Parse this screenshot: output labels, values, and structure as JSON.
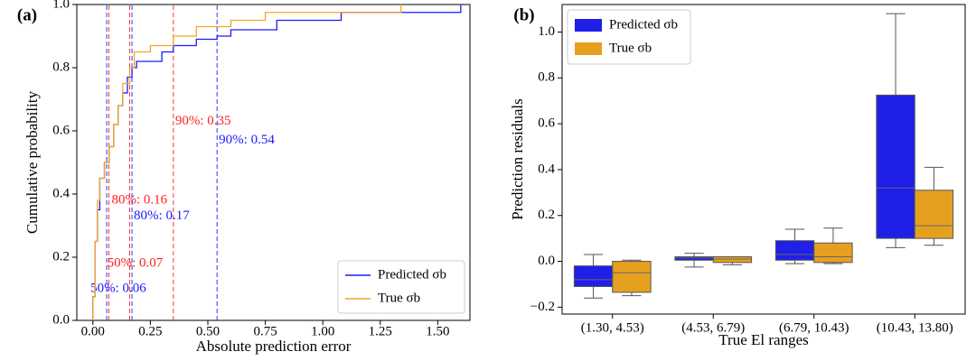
{
  "chart_data": [
    {
      "type": "step",
      "panel_label": "(a)",
      "xlabel": "Absolute prediction error",
      "ylabel": "Cumulative probability",
      "xlim": [
        -0.07,
        1.64
      ],
      "ylim": [
        0,
        1.0
      ],
      "xticks": [
        {
          "value": 0,
          "label": "0.00"
        },
        {
          "value": 0.25,
          "label": "0.25"
        },
        {
          "value": 0.5,
          "label": "0.50"
        },
        {
          "value": 0.75,
          "label": "0.75"
        },
        {
          "value": 1.0,
          "label": "1.00"
        },
        {
          "value": 1.25,
          "label": "1.25"
        },
        {
          "value": 1.5,
          "label": "1.50"
        }
      ],
      "yticks": [
        {
          "value": 0,
          "label": "0.0"
        },
        {
          "value": 0.2,
          "label": "0.2"
        },
        {
          "value": 0.4,
          "label": "0.4"
        },
        {
          "value": 0.6,
          "label": "0.6"
        },
        {
          "value": 0.8,
          "label": "0.8"
        },
        {
          "value": 1.0,
          "label": "1.0"
        }
      ],
      "legend": "lower right",
      "series": [
        {
          "name": "Predicted σb",
          "color": "#1a1aff",
          "x": [
            0.0,
            0.01,
            0.02,
            0.03,
            0.05,
            0.07,
            0.09,
            0.11,
            0.13,
            0.15,
            0.17,
            0.19,
            0.25,
            0.3,
            0.35,
            0.45,
            0.54,
            0.6,
            0.8,
            1.0,
            1.08,
            1.6
          ],
          "values": [
            0.075,
            0.25,
            0.35,
            0.45,
            0.5,
            0.55,
            0.62,
            0.68,
            0.72,
            0.77,
            0.8,
            0.82,
            0.82,
            0.85,
            0.87,
            0.89,
            0.9,
            0.92,
            0.95,
            0.95,
            0.975,
            1.0
          ]
        },
        {
          "name": "True σb",
          "color": "#f5a623",
          "x": [
            0.0,
            0.01,
            0.02,
            0.03,
            0.05,
            0.07,
            0.09,
            0.11,
            0.13,
            0.16,
            0.18,
            0.25,
            0.35,
            0.45,
            0.6,
            0.75,
            1.34
          ],
          "values": [
            0.075,
            0.25,
            0.38,
            0.45,
            0.5,
            0.55,
            0.62,
            0.68,
            0.75,
            0.8,
            0.85,
            0.87,
            0.9,
            0.93,
            0.95,
            0.975,
            1.0
          ]
        }
      ],
      "annotations": [
        {
          "x": 0.35,
          "label": "90%: 0.35",
          "color": "#ff2020"
        },
        {
          "x": 0.54,
          "label": "90%: 0.54",
          "color": "#1a1aff"
        },
        {
          "x": 0.16,
          "label": "80%: 0.16",
          "color": "#ff2020"
        },
        {
          "x": 0.17,
          "label": "80%: 0.17",
          "color": "#1a1aff"
        },
        {
          "x": 0.07,
          "label": "50%: 0.07",
          "color": "#ff2020"
        },
        {
          "x": 0.06,
          "label": "50%: 0.06",
          "color": "#1a1aff"
        }
      ]
    },
    {
      "type": "box",
      "panel_label": "(b)",
      "xlabel": "True El ranges",
      "ylabel": "Prediction residuals",
      "categories": [
        "(1.30, 4.53)",
        "(4.53, 6.79)",
        "(6.79, 10.43)",
        "(10.43, 13.80)"
      ],
      "ylim": [
        -0.23,
        1.12
      ],
      "yticks": [
        {
          "value": -0.2,
          "label": "−0.2"
        },
        {
          "value": 0,
          "label": "0.0"
        },
        {
          "value": 0.2,
          "label": "0.2"
        },
        {
          "value": 0.4,
          "label": "0.4"
        },
        {
          "value": 0.6,
          "label": "0.6"
        },
        {
          "value": 0.8,
          "label": "0.8"
        },
        {
          "value": 1.0,
          "label": "1.0"
        }
      ],
      "legend": "upper left",
      "series": [
        {
          "name": "Predicted σb",
          "color": "#1f1fe8",
          "values": [
            {
              "whislo": -0.16,
              "q1": -0.11,
              "med": -0.08,
              "q3": -0.02,
              "whishi": 0.03
            },
            {
              "whislo": -0.025,
              "q1": 0.005,
              "med": 0.015,
              "q3": 0.02,
              "whishi": 0.035
            },
            {
              "whislo": -0.01,
              "q1": 0.005,
              "med": 0.03,
              "q3": 0.09,
              "whishi": 0.14
            },
            {
              "whislo": 0.06,
              "q1": 0.1,
              "med": 0.32,
              "q3": 0.725,
              "whishi": 1.08
            }
          ]
        },
        {
          "name": "True σb",
          "color": "#e6a020",
          "values": [
            {
              "whislo": -0.15,
              "q1": -0.135,
              "med": -0.05,
              "q3": 0.0,
              "whishi": 0.005
            },
            {
              "whislo": -0.015,
              "q1": -0.005,
              "med": 0.01,
              "q3": 0.02,
              "whishi": 0.02
            },
            {
              "whislo": -0.01,
              "q1": -0.005,
              "med": 0.02,
              "q3": 0.08,
              "whishi": 0.145
            },
            {
              "whislo": 0.07,
              "q1": 0.1,
              "med": 0.155,
              "q3": 0.31,
              "whishi": 0.41
            }
          ]
        }
      ]
    }
  ]
}
